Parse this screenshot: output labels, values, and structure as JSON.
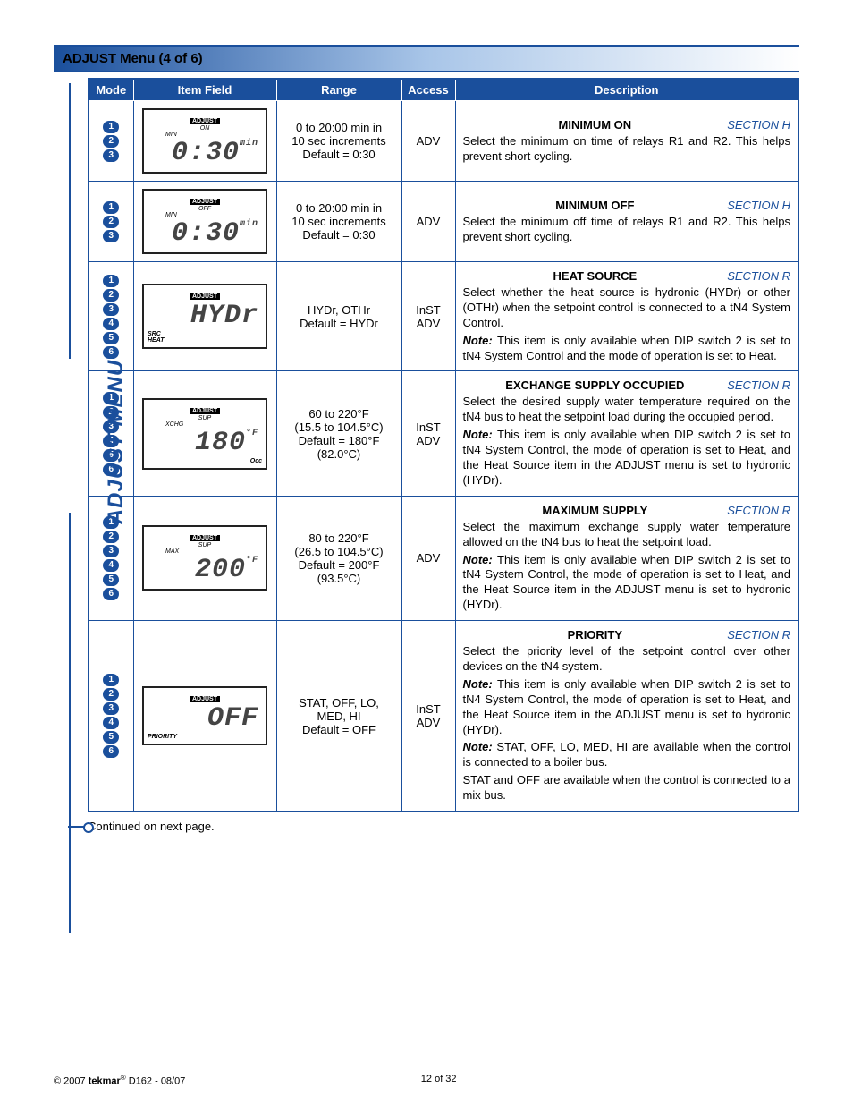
{
  "section_title": "ADJUST Menu (4 of 6)",
  "side_title": "ADJUST MENU",
  "columns": [
    "Mode",
    "Item Field",
    "Range",
    "Access",
    "Description"
  ],
  "rows": [
    {
      "modes": [
        "1",
        "2",
        "3"
      ],
      "lcd": {
        "top": "ADJUST",
        "line1": "ON",
        "line2": "MIN",
        "main": "0:30",
        "unit": "min",
        "bottom": ""
      },
      "range_lines": [
        "0 to 20:00 min in",
        "10 sec increments",
        "Default = 0:30"
      ],
      "access_lines": [
        "ADV"
      ],
      "title": "MINIMUM ON",
      "section": "SECTION H",
      "body": [
        "Select the minimum on time of relays R1 and R2. This helps prevent short cycling."
      ]
    },
    {
      "modes": [
        "1",
        "2",
        "3"
      ],
      "lcd": {
        "top": "ADJUST",
        "line1": "OFF",
        "line2": "MIN",
        "main": "0:30",
        "unit": "min",
        "bottom": ""
      },
      "range_lines": [
        "0 to 20:00 min in",
        "10 sec increments",
        "Default = 0:30"
      ],
      "access_lines": [
        "ADV"
      ],
      "title": "MINIMUM OFF",
      "section": "SECTION H",
      "body": [
        "Select the minimum off time of relays R1 and R2. This helps prevent short cycling."
      ]
    },
    {
      "modes": [
        "1",
        "2",
        "3",
        "4",
        "5",
        "6"
      ],
      "lcd": {
        "top": "ADJUST",
        "line1": "",
        "line2": "",
        "main": "HYDr",
        "unit": "",
        "bottom": "SRC",
        "bottom2": "HEAT"
      },
      "range_lines": [
        "HYDr, OTHr",
        "Default = HYDr"
      ],
      "access_lines": [
        "InST",
        "ADV"
      ],
      "title": "HEAT SOURCE",
      "section": "SECTION R",
      "body": [
        "Select whether the heat source is hydronic (HYDr) or other (OTHr) when the setpoint control is connected to a tN4 System Control."
      ],
      "note": "This item is only available when DIP switch 2 is set to tN4 System Control and the mode of operation is set to Heat."
    },
    {
      "modes": [
        "1",
        "2",
        "3",
        "4",
        "5",
        "6"
      ],
      "lcd": {
        "top": "ADJUST",
        "line1": "SUP",
        "line2": "XCHG",
        "main": "180",
        "unit": "°F",
        "bottom": "Occ"
      },
      "range_lines": [
        "60 to 220°F",
        "(15.5 to 104.5°C)",
        "Default = 180°F",
        "(82.0°C)"
      ],
      "access_lines": [
        "InST",
        "ADV"
      ],
      "title": "EXCHANGE SUPPLY OCCUPIED",
      "section": "SECTION R",
      "body": [
        "Select the desired supply water temperature required on the tN4 bus to heat the setpoint load during the occupied period."
      ],
      "note": "This item is only available when DIP switch 2 is set to tN4 System Control, the mode of operation is set to Heat, and the Heat Source item in the ADJUST menu is set to hydronic (HYDr)."
    },
    {
      "modes": [
        "1",
        "2",
        "3",
        "4",
        "5",
        "6"
      ],
      "lcd": {
        "top": "ADJUST",
        "line1": "SUP",
        "line2": "MAX",
        "main": "200",
        "unit": "°F",
        "bottom": ""
      },
      "range_lines": [
        "80 to 220°F",
        "(26.5 to 104.5°C)",
        "Default = 200°F",
        "(93.5°C)"
      ],
      "access_lines": [
        "ADV"
      ],
      "title": "MAXIMUM SUPPLY",
      "section": "SECTION R",
      "body": [
        "Select the maximum exchange supply water temperature allowed on the tN4 bus to heat the setpoint load."
      ],
      "note": "This item is only available when DIP switch 2 is set to tN4 System Control, the mode of operation is set to Heat, and the Heat Source item in the ADJUST menu is set to hydronic (HYDr)."
    },
    {
      "modes": [
        "1",
        "2",
        "3",
        "4",
        "5",
        "6"
      ],
      "lcd": {
        "top": "ADJUST",
        "line1": "",
        "line2": "",
        "main": "OFF",
        "unit": "",
        "bottom": "PRIORITY"
      },
      "range_lines": [
        "STAT, OFF, LO,",
        "MED, HI",
        "Default = OFF"
      ],
      "access_lines": [
        "InST",
        "ADV"
      ],
      "title": "PRIORITY",
      "section": "SECTION R",
      "body": [
        "Select the priority level of the setpoint control over other devices on the tN4 system."
      ],
      "note": "This item is only available when DIP switch 2 is set to tN4 System Control, the mode of operation is set to Heat, and the Heat Source item in the ADJUST menu is set to hydronic (HYDr).",
      "extra": [
        "STAT, OFF, LO, MED, HI are available when the control is connected to a boiler bus.",
        "STAT and OFF are available when the control is connected to a mix bus."
      ],
      "extra_note_first": true
    }
  ],
  "continued": "Continued on next page.",
  "footer_left_prefix": "© 2007 ",
  "footer_brand": "tekmar",
  "footer_left_suffix": " D162 - 08/07",
  "footer_center": "12 of 32"
}
